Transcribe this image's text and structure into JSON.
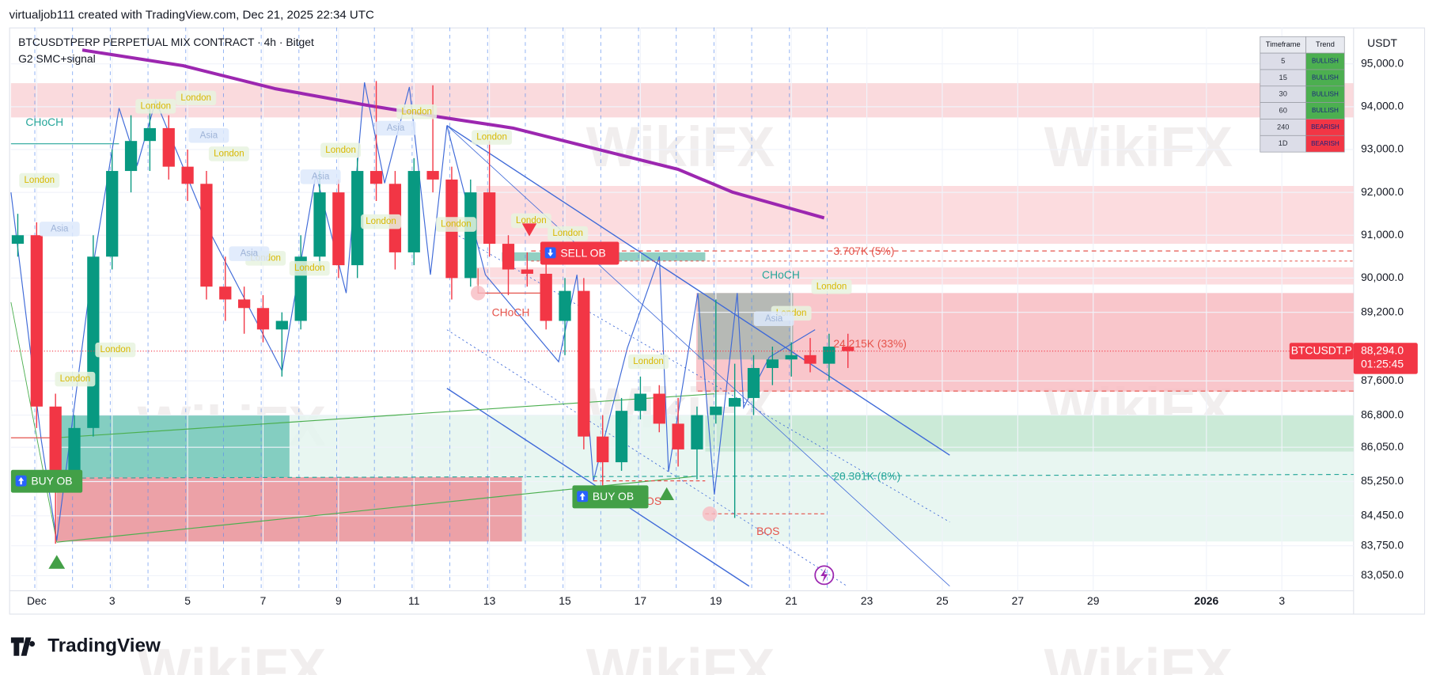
{
  "header": {
    "credit": "virtualjob111 created with TradingView.com, Dec 21, 2025 22:34 UTC",
    "symbol": "BTCUSDTPERP PERPETUAL MIX CONTRACT · 4h · Bitget",
    "indicator": "G2 SMC+signal",
    "currency": "USDT",
    "logo": "TradingView",
    "watermark": "WikiFX"
  },
  "chart_data": {
    "type": "candlestick",
    "x": [
      -0.5,
      0,
      0.5,
      1,
      1.5,
      2,
      2.5,
      3,
      3.5,
      4,
      4.5,
      5,
      5.5,
      6,
      6.5,
      7,
      7.5,
      8,
      8.5,
      9,
      9.5,
      10,
      10.5,
      11,
      11.5,
      12,
      12.5,
      13,
      13.5,
      14,
      14.5,
      15,
      15.5,
      16,
      16.5,
      17,
      17.5,
      18,
      18.5,
      19,
      19.5,
      20,
      20.5,
      21,
      21.5
    ],
    "open": [
      90800,
      91000,
      87000,
      85500,
      86500,
      90500,
      92500,
      93200,
      93500,
      92600,
      92200,
      89800,
      89500,
      89300,
      88800,
      89000,
      90500,
      92000,
      90300,
      92500,
      92200,
      90600,
      92500,
      92300,
      90000,
      92000,
      90800,
      90200,
      90100,
      89000,
      89700,
      86300,
      85700,
      86900,
      87300,
      86600,
      86000,
      86800,
      87000,
      87200,
      87900,
      88100,
      88200,
      88000,
      88400
    ],
    "high": [
      91500,
      91300,
      87300,
      86800,
      91000,
      93000,
      93800,
      94000,
      93800,
      93000,
      92500,
      90500,
      89800,
      89600,
      89200,
      91000,
      92500,
      92300,
      92800,
      94600,
      92500,
      92800,
      94500,
      92600,
      92300,
      93200,
      91000,
      90600,
      90500,
      90000,
      90000,
      86800,
      87200,
      87700,
      87500,
      87200,
      87000,
      89500,
      88000,
      88200,
      88400,
      88500,
      88600,
      88700,
      88700
    ],
    "low": [
      90500,
      86500,
      83800,
      85000,
      86300,
      90200,
      92000,
      92500,
      92300,
      91800,
      89500,
      89000,
      88700,
      88500,
      87700,
      88800,
      90200,
      90000,
      90000,
      91800,
      90200,
      90300,
      92000,
      89500,
      89800,
      90500,
      89600,
      89800,
      88800,
      88200,
      86000,
      85100,
      85500,
      86700,
      86400,
      85600,
      85300,
      86600,
      84400,
      86800,
      87500,
      87700,
      87800,
      87600,
      87900
    ],
    "close": [
      91000,
      87000,
      85500,
      86500,
      90500,
      92500,
      93200,
      93500,
      92600,
      92200,
      89800,
      89500,
      89300,
      88800,
      89000,
      90500,
      92000,
      90300,
      92500,
      92200,
      90600,
      92500,
      92300,
      90000,
      92000,
      90800,
      90200,
      90100,
      89000,
      89700,
      86300,
      85700,
      86900,
      87300,
      86600,
      86000,
      86800,
      87000,
      87200,
      87900,
      88100,
      88200,
      88000,
      88400,
      88294
    ],
    "up_color": "#089981",
    "down_color": "#f23645",
    "xlim": [
      -0.68,
      34.9
    ],
    "xticks": [
      {
        "value": 0,
        "label": "Dec"
      },
      {
        "value": 2,
        "label": "3"
      },
      {
        "value": 4,
        "label": "5"
      },
      {
        "value": 6,
        "label": "7"
      },
      {
        "value": 8,
        "label": "9"
      },
      {
        "value": 10,
        "label": "11"
      },
      {
        "value": 12,
        "label": "13"
      },
      {
        "value": 14,
        "label": "15"
      },
      {
        "value": 16,
        "label": "17"
      },
      {
        "value": 18,
        "label": "19"
      },
      {
        "value": 20,
        "label": "21"
      },
      {
        "value": 22,
        "label": "23"
      },
      {
        "value": 24,
        "label": "25"
      },
      {
        "value": 26,
        "label": "27"
      },
      {
        "value": 28,
        "label": "29"
      },
      {
        "value": 31,
        "label": "2026"
      },
      {
        "value": 33,
        "label": "3"
      }
    ],
    "ylim": [
      82700,
      95850
    ],
    "yticks": [
      {
        "value": 95000,
        "label": "95,000.0"
      },
      {
        "value": 94000,
        "label": "94,000.0"
      },
      {
        "value": 93000,
        "label": "93,000.0"
      },
      {
        "value": 92000,
        "label": "92,000.0"
      },
      {
        "value": 91000,
        "label": "91,000.0"
      },
      {
        "value": 90000,
        "label": "90,000.0"
      },
      {
        "value": 89200,
        "label": "89,200.0"
      },
      {
        "value": 87600,
        "label": "87,600.0"
      },
      {
        "value": 86800,
        "label": "86,800.0"
      },
      {
        "value": 86050,
        "label": "86,050.0"
      },
      {
        "value": 85250,
        "label": "85,250.0"
      },
      {
        "value": 84450,
        "label": "84,450.0"
      },
      {
        "value": 83750,
        "label": "83,750.0"
      },
      {
        "value": 83050,
        "label": "83,050.0"
      }
    ],
    "last_price": {
      "symbol": "BTCUSDT.P",
      "value": 88294,
      "label": "88,294.0",
      "countdown": "01:25:45"
    },
    "moving_average": {
      "color": "#9c27b0",
      "x": [
        1.21,
        3.88,
        6.31,
        8.74,
        10.68,
        12.62,
        14.56,
        17.0,
        18.45,
        20.87
      ],
      "values": [
        95322,
        94958,
        94423,
        94037,
        93759,
        93502,
        93074,
        92538,
        92003,
        91404
      ]
    },
    "zones": [
      {
        "from": -0.68,
        "to": 34.9,
        "high": 94550,
        "low": 93750,
        "color": "#f9d3d7"
      },
      {
        "from": 11.65,
        "to": 34.9,
        "high": 92150,
        "low": 90800,
        "color": "#fbd6d9"
      },
      {
        "from": 11.65,
        "to": 34.9,
        "high": 90250,
        "low": 89850,
        "color": "#fbd6d9"
      },
      {
        "from": 17.48,
        "to": 34.9,
        "high": 89650,
        "low": 87350,
        "color": "#f8bcc2"
      },
      {
        "from": 0.53,
        "to": 34.9,
        "high": 86800,
        "low": 83850,
        "color": "#e4f4ef"
      },
      {
        "from": 17.72,
        "to": 34.9,
        "high": 86800,
        "low": 85950,
        "color": "#c6e7d2"
      },
      {
        "from": 0.53,
        "to": 6.7,
        "high": 86800,
        "low": 85350,
        "color": "#72c7b8"
      },
      {
        "from": 0.53,
        "to": 12.86,
        "high": 85350,
        "low": 83850,
        "color": "#ec929a"
      },
      {
        "from": 17.52,
        "to": 20.05,
        "high": 89650,
        "low": 88100,
        "color": "#aab6b1"
      },
      {
        "from": 12.33,
        "to": 17.72,
        "high": 90600,
        "low": 90400,
        "color": "#7fc7b7"
      }
    ],
    "measurements": [
      "3.707K (5%)",
      "24.215K (33%)",
      "20.301K (8%)"
    ],
    "structure_labels": [
      "CHoCH",
      "CHoCH",
      "CHoCH",
      "BOS",
      "BOS"
    ],
    "signals": [
      "BUY OB",
      "BUY OB",
      "SELL OB"
    ],
    "session_labels": [
      "London",
      "London",
      "London",
      "London",
      "London",
      "London",
      "London",
      "London",
      "London",
      "London",
      "London",
      "London",
      "London",
      "London",
      "London",
      "London",
      "London",
      "London",
      "Asia",
      "Asia",
      "Asia",
      "Asia",
      "Asia",
      "Asia"
    ]
  },
  "trend_table": {
    "header": [
      "Timeframe",
      "Trend"
    ],
    "rows": [
      [
        5,
        "BULLISH"
      ],
      [
        15,
        "BULLISH"
      ],
      [
        30,
        "BULLISH"
      ],
      [
        60,
        "BULLISH"
      ],
      [
        240,
        "BEARISH"
      ],
      [
        "1D",
        "BEARISH"
      ]
    ]
  }
}
